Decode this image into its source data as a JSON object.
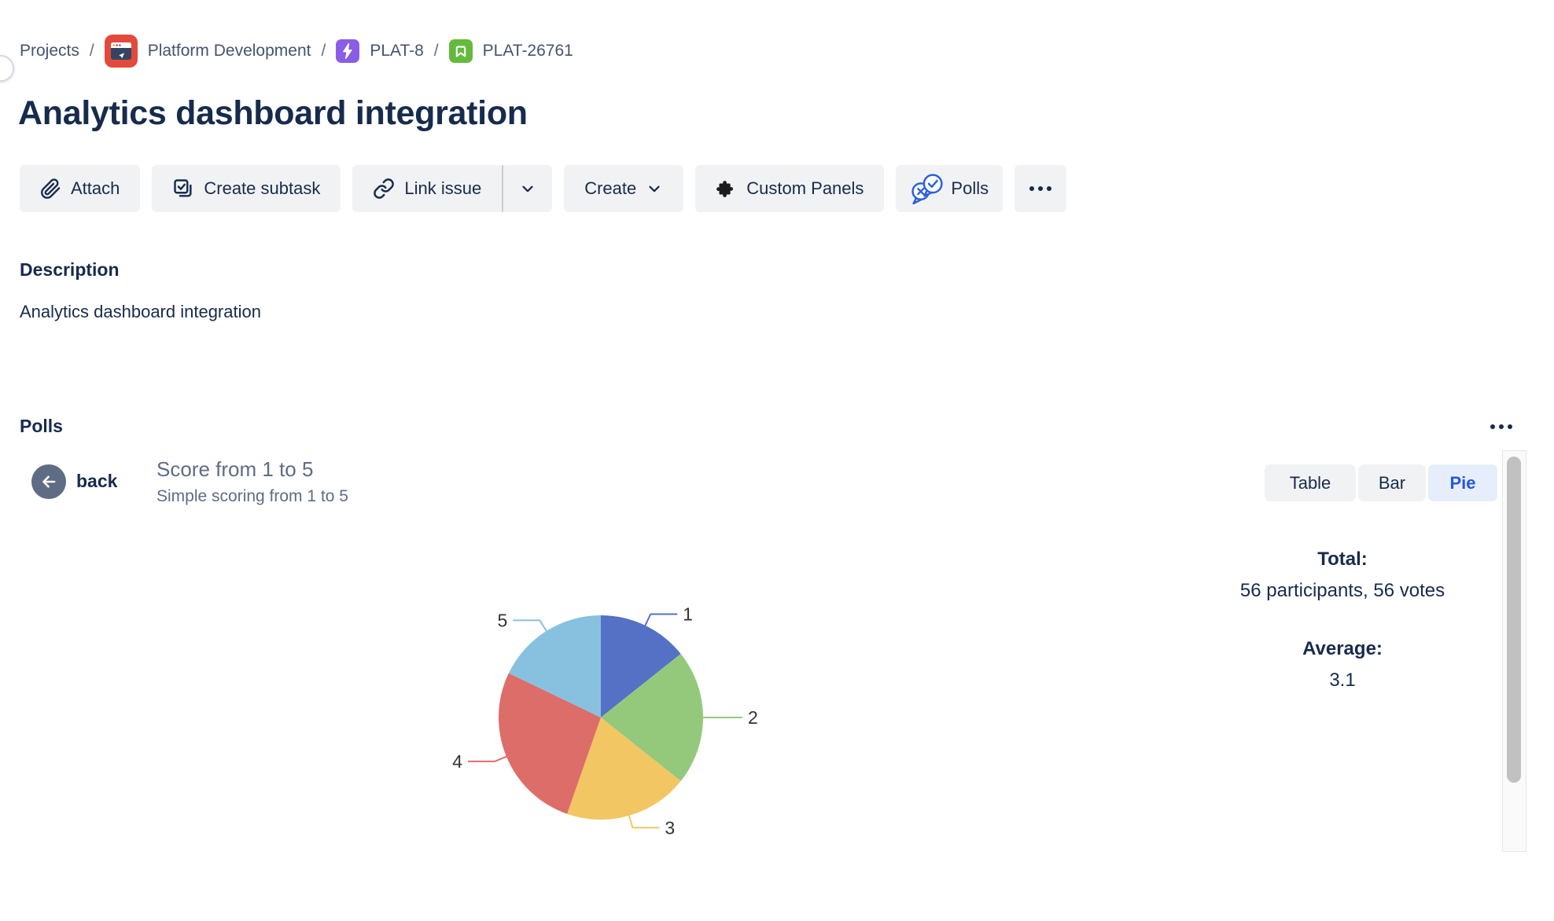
{
  "breadcrumb": {
    "separator": "/",
    "items": [
      {
        "label": "Projects"
      },
      {
        "label": "Platform Development",
        "icon": "project-avatar"
      },
      {
        "label": "PLAT-8",
        "icon": "epic-icon"
      },
      {
        "label": "PLAT-26761",
        "icon": "story-icon"
      }
    ]
  },
  "page": {
    "title": "Analytics dashboard integration"
  },
  "toolbar": {
    "attach_label": "Attach",
    "create_subtask_label": "Create subtask",
    "link_issue_label": "Link issue",
    "create_label": "Create",
    "custom_panels_label": "Custom Panels",
    "polls_label": "Polls",
    "more_icon": "ellipsis"
  },
  "description": {
    "heading": "Description",
    "body": "Analytics dashboard integration"
  },
  "polls": {
    "heading": "Polls",
    "more_icon": "ellipsis",
    "back_label": "back",
    "poll_title": "Score from 1 to 5",
    "poll_subtitle": "Simple scoring from 1 to 5",
    "tabs": [
      {
        "label": "Table",
        "active": false
      },
      {
        "label": "Bar",
        "active": false
      },
      {
        "label": "Pie",
        "active": true
      }
    ],
    "stats": {
      "total_label": "Total:",
      "total_value": "56 participants, 56 votes",
      "average_label": "Average:",
      "average_value": "3.1"
    }
  },
  "chart_data": {
    "type": "pie",
    "title": "Score from 1 to 5",
    "labels": [
      "1",
      "2",
      "3",
      "4",
      "5"
    ],
    "values": [
      8,
      12,
      11,
      15,
      10
    ],
    "total_votes": 56,
    "participants": 56,
    "average": 3.1,
    "colors": [
      "#5571C5",
      "#94C97B",
      "#F2C663",
      "#DD6D69",
      "#88C1DF"
    ],
    "label_color": "#333333",
    "legend": "off",
    "start_angle_deg": 0,
    "direction": "clockwise"
  },
  "colors": {
    "text_primary": "#172B4D",
    "text_secondary": "#5E6C84",
    "breadcrumb_text": "#44546F",
    "button_bg": "#F1F2F4",
    "tab_active_bg": "#E7EEFB",
    "tab_active_text": "#2458DB",
    "polls_icon_blue": "#2B5FDC",
    "project_avatar_red": "#E4493B",
    "epic_purple": "#8B5CE6",
    "story_green": "#63BA3C",
    "back_circle": "#5E6C84"
  }
}
